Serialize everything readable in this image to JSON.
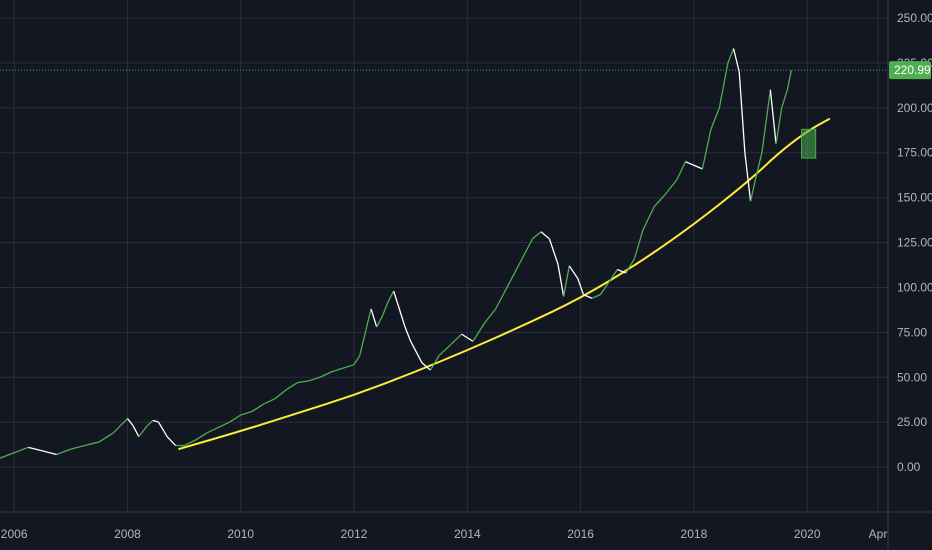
{
  "colors": {
    "background": "#131722",
    "grid": "#2a2e39",
    "price_line": "#26a69a",
    "up": "#4caf50",
    "down": "#ffffff",
    "trendline": "#ffeb3b",
    "price_tag": "#4caf50",
    "axis_text": "#b2b5be"
  },
  "chart_data": {
    "type": "line",
    "title": "",
    "xlabel": "",
    "ylabel": "",
    "ylim": [
      -25,
      260
    ],
    "xlim": [
      2005.75,
      2021.25
    ],
    "grid": true,
    "y_ticks": [
      "250.00",
      "225.00",
      "200.00",
      "175.00",
      "150.00",
      "125.00",
      "100.00",
      "75.00",
      "50.00",
      "25.00",
      "0.00"
    ],
    "x_ticks": [
      {
        "label": "2006",
        "x": 2006.0
      },
      {
        "label": "2008",
        "x": 2008.0
      },
      {
        "label": "2010",
        "x": 2010.0
      },
      {
        "label": "2012",
        "x": 2012.0
      },
      {
        "label": "2014",
        "x": 2014.0
      },
      {
        "label": "2016",
        "x": 2016.0
      },
      {
        "label": "2018",
        "x": 2018.0
      },
      {
        "label": "2020",
        "x": 2020.0
      },
      {
        "label": "Apr",
        "x": 2021.25
      }
    ],
    "last_price": 220.99,
    "last_price_label": "220.99",
    "series": [
      {
        "values": [
          [
            2005.75,
            5
          ],
          [
            2006.0,
            8
          ],
          [
            2006.25,
            11
          ],
          [
            2006.5,
            9
          ],
          [
            2006.75,
            7
          ],
          [
            2007.0,
            10
          ],
          [
            2007.25,
            12
          ],
          [
            2007.5,
            14
          ],
          [
            2007.75,
            19
          ],
          [
            2008.0,
            27
          ],
          [
            2008.1,
            23
          ],
          [
            2008.2,
            17
          ],
          [
            2008.35,
            23
          ],
          [
            2008.45,
            26
          ],
          [
            2008.55,
            25
          ],
          [
            2008.7,
            17
          ],
          [
            2008.85,
            12
          ],
          [
            2009.0,
            12
          ],
          [
            2009.2,
            15
          ],
          [
            2009.4,
            19
          ],
          [
            2009.6,
            22
          ],
          [
            2009.8,
            25
          ],
          [
            2010.0,
            29
          ],
          [
            2010.2,
            31
          ],
          [
            2010.4,
            35
          ],
          [
            2010.6,
            38
          ],
          [
            2010.8,
            43
          ],
          [
            2011.0,
            47
          ],
          [
            2011.2,
            48
          ],
          [
            2011.4,
            50
          ],
          [
            2011.6,
            53
          ],
          [
            2011.8,
            55
          ],
          [
            2012.0,
            57
          ],
          [
            2012.1,
            62
          ],
          [
            2012.2,
            75
          ],
          [
            2012.3,
            88
          ],
          [
            2012.4,
            78
          ],
          [
            2012.5,
            84
          ],
          [
            2012.6,
            92
          ],
          [
            2012.7,
            98
          ],
          [
            2012.8,
            88
          ],
          [
            2012.9,
            78
          ],
          [
            2013.0,
            70
          ],
          [
            2013.2,
            58
          ],
          [
            2013.35,
            54
          ],
          [
            2013.5,
            62
          ],
          [
            2013.7,
            68
          ],
          [
            2013.9,
            74
          ],
          [
            2014.0,
            72
          ],
          [
            2014.1,
            70
          ],
          [
            2014.3,
            80
          ],
          [
            2014.5,
            88
          ],
          [
            2014.7,
            100
          ],
          [
            2014.9,
            112
          ],
          [
            2015.0,
            118
          ],
          [
            2015.15,
            127
          ],
          [
            2015.3,
            131
          ],
          [
            2015.45,
            127
          ],
          [
            2015.6,
            113
          ],
          [
            2015.7,
            95
          ],
          [
            2015.8,
            112
          ],
          [
            2015.95,
            105
          ],
          [
            2016.05,
            96
          ],
          [
            2016.2,
            94
          ],
          [
            2016.35,
            96
          ],
          [
            2016.5,
            103
          ],
          [
            2016.65,
            110
          ],
          [
            2016.8,
            108
          ],
          [
            2016.95,
            116
          ],
          [
            2017.1,
            132
          ],
          [
            2017.3,
            145
          ],
          [
            2017.5,
            152
          ],
          [
            2017.7,
            160
          ],
          [
            2017.85,
            170
          ],
          [
            2018.0,
            168
          ],
          [
            2018.15,
            166
          ],
          [
            2018.3,
            188
          ],
          [
            2018.45,
            200
          ],
          [
            2018.6,
            225
          ],
          [
            2018.7,
            233
          ],
          [
            2018.8,
            220
          ],
          [
            2018.9,
            175
          ],
          [
            2019.0,
            148
          ],
          [
            2019.1,
            162
          ],
          [
            2019.2,
            175
          ],
          [
            2019.35,
            210
          ],
          [
            2019.45,
            180
          ],
          [
            2019.55,
            200
          ],
          [
            2019.65,
            210
          ],
          [
            2019.72,
            221
          ]
        ]
      }
    ],
    "trendline": [
      [
        2008.9,
        10
      ],
      [
        2010.0,
        20
      ],
      [
        2011.0,
        30
      ],
      [
        2012.0,
        40
      ],
      [
        2013.0,
        52
      ],
      [
        2014.0,
        65
      ],
      [
        2015.0,
        79
      ],
      [
        2016.0,
        94
      ],
      [
        2017.0,
        113
      ],
      [
        2018.0,
        135
      ],
      [
        2019.0,
        160
      ],
      [
        2019.5,
        175
      ],
      [
        2020.0,
        187
      ],
      [
        2020.4,
        194
      ]
    ],
    "marker_box": {
      "x0": 2019.9,
      "x1": 2020.15,
      "y0": 172,
      "y1": 188
    }
  }
}
